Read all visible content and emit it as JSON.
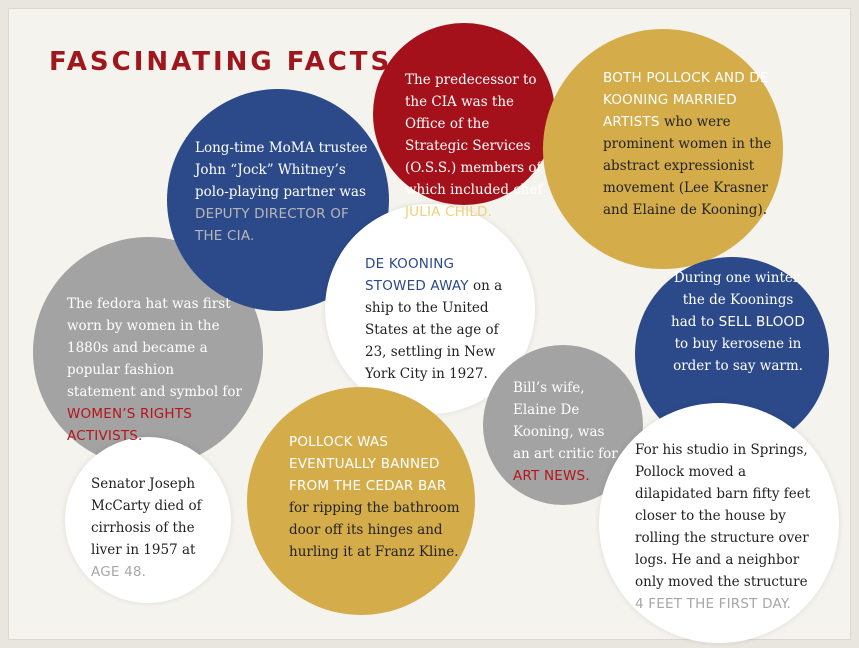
{
  "title": "FASCINATING FACTS",
  "facts": [
    {
      "id": "moma",
      "pre": "Long-time MoMA trustee John “Jock” Whitney’s polo-playing partner was",
      "hl": "DEPUTY DIRECTOR OF THE CIA.",
      "post": "",
      "color": "blue"
    },
    {
      "id": "cia",
      "pre": "The predecessor to the CIA was the Office of the Strategic Services (O.S.S.) members of which included chef",
      "hl": "JULIA CHILD.",
      "post": "",
      "color": "red"
    },
    {
      "id": "married",
      "pre": "",
      "hl": "BOTH POLLOCK AND DE KOONING MARRIED ARTISTS",
      "post": "who were prominent women in the abstract expressionist movement (Lee Krasner and Elaine de Kooning).",
      "color": "gold"
    },
    {
      "id": "fedora",
      "pre": "The fedora hat was first worn by women in the 1880s and became a popular fashion statement and symbol for",
      "hl": "WOMEN’S RIGHTS ACTIVISTS.",
      "post": "",
      "color": "gray"
    },
    {
      "id": "stowed",
      "pre": "",
      "hl": "DE KOONING STOWED AWAY",
      "post": "on a ship to the United States at the age of 23, settling in New York City in 1927.",
      "color": "white"
    },
    {
      "id": "blood",
      "pre": "During one winter, the de Koonings had to",
      "hl": "SELL BLOOD",
      "post": "to buy kerosene in order to say warm.",
      "color": "blue"
    },
    {
      "id": "elaine",
      "pre": "Bill’s wife, Elaine De Kooning, was an art critic for",
      "hl": "ART NEWS.",
      "post": "",
      "color": "gray"
    },
    {
      "id": "mccarty",
      "pre": "Senator Joseph McCarty died of cirrhosis of the liver in 1957 at",
      "hl": "AGE 48.",
      "post": "",
      "color": "white"
    },
    {
      "id": "banned",
      "pre": "",
      "hl": "POLLOCK WAS EVENTUALLY BANNED FROM THE CEDAR BAR",
      "post": "for ripping the bathroom door off its hinges and hurling it at Franz Kline.",
      "color": "gold"
    },
    {
      "id": "barn",
      "pre": "For his studio in Springs, Pollock moved a dilapidated barn fifty feet closer to the house by rolling the structure over logs. He and a neighbor only moved the structure",
      "hl": "4 FEET THE FIRST DAY.",
      "post": "",
      "color": "white"
    }
  ]
}
